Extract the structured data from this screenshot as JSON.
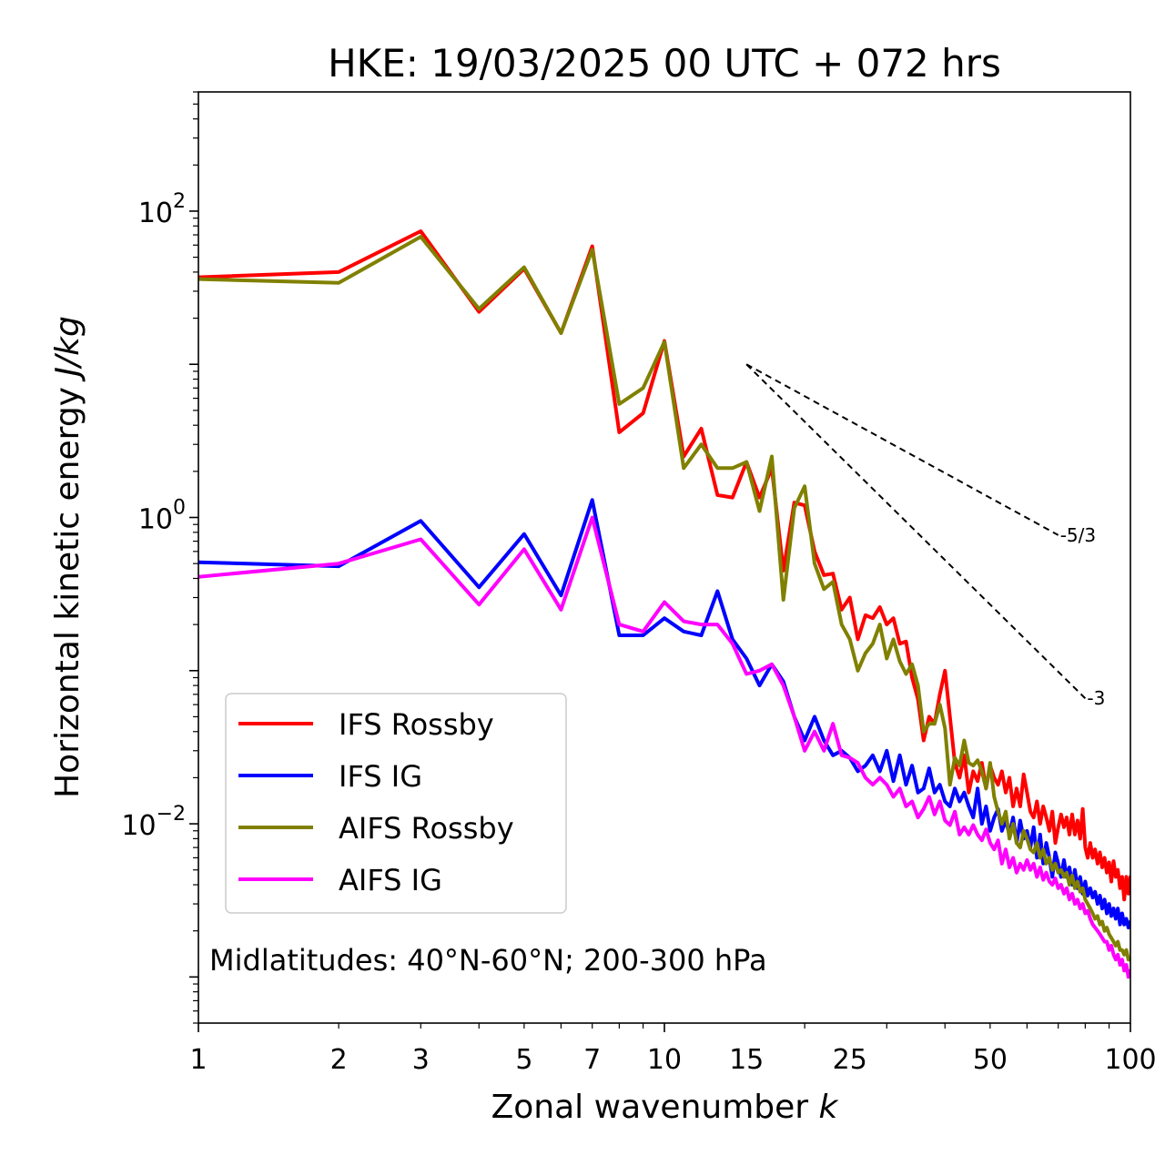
{
  "chart_data": {
    "type": "line",
    "title": "HKE: 19/03/2025 00 UTC + 072 hrs",
    "xlabel": "Zonal wavenumber",
    "xlabel_var": "k",
    "ylabel": "Horizontal kinetic energy",
    "ylabel_unit": "J/kg",
    "xscale": "log",
    "yscale": "log",
    "xlim": [
      1,
      100
    ],
    "ylim": [
      0.0005,
      600
    ],
    "x_ticks": [
      1,
      2,
      3,
      5,
      7,
      10,
      15,
      25,
      50,
      100
    ],
    "x_tick_labels": [
      "1",
      "2",
      "3",
      "5",
      "7",
      "10",
      "15",
      "25",
      "50",
      "100"
    ],
    "y_ticks": [
      {
        "value": 100,
        "base": "10",
        "exp": "2"
      },
      {
        "value": 1,
        "base": "10",
        "exp": "0"
      },
      {
        "value": 0.01,
        "base": "10",
        "exp": "−2"
      }
    ],
    "grid": false,
    "legend_position": "lower-left",
    "annotation": "Midlatitudes: 40°N-60°N; 200-300 hPa",
    "x": [
      1,
      2,
      3,
      4,
      5,
      6,
      7,
      8,
      9,
      10,
      11,
      12,
      13,
      14,
      15,
      16,
      17,
      18,
      19,
      20,
      21,
      22,
      23,
      24,
      25,
      26,
      27,
      28,
      29,
      30,
      31,
      32,
      33,
      34,
      35,
      36,
      37,
      38,
      39,
      40,
      41,
      42,
      43,
      44,
      45,
      46,
      47,
      48,
      49,
      50,
      51,
      52,
      53,
      54,
      55,
      56,
      57,
      58,
      59,
      60,
      61,
      62,
      63,
      64,
      65,
      66,
      67,
      68,
      69,
      70,
      71,
      72,
      73,
      74,
      75,
      76,
      77,
      78,
      79,
      80,
      81,
      82,
      83,
      84,
      85,
      86,
      87,
      88,
      89,
      90,
      91,
      92,
      93,
      94,
      95,
      96,
      97,
      98,
      99,
      100
    ],
    "series": [
      {
        "name": "IFS Rossby",
        "color": "#ff0000",
        "values": [
          37,
          40,
          74,
          22,
          42,
          16,
          59,
          3.6,
          4.8,
          14.2,
          2.5,
          3.8,
          1.4,
          1.35,
          2.3,
          1.35,
          2.1,
          0.45,
          1.25,
          1.2,
          0.6,
          0.42,
          0.43,
          0.25,
          0.3,
          0.16,
          0.23,
          0.22,
          0.26,
          0.2,
          0.22,
          0.15,
          0.155,
          0.09,
          0.065,
          0.035,
          0.05,
          0.045,
          0.07,
          0.1,
          0.05,
          0.025,
          0.02,
          0.028,
          0.016,
          0.022,
          0.019,
          0.025,
          0.017,
          0.024,
          0.02,
          0.018,
          0.022,
          0.016,
          0.02,
          0.013,
          0.017,
          0.013,
          0.021,
          0.016,
          0.012,
          0.011,
          0.014,
          0.01,
          0.013,
          0.011,
          0.009,
          0.012,
          0.0075,
          0.0095,
          0.0115,
          0.0095,
          0.011,
          0.0085,
          0.0115,
          0.0085,
          0.0105,
          0.008,
          0.0125,
          0.007,
          0.006,
          0.0075,
          0.006,
          0.0068,
          0.0055,
          0.0065,
          0.0052,
          0.006,
          0.0048,
          0.0056,
          0.0042,
          0.0057,
          0.0045,
          0.005,
          0.0038,
          0.0045,
          0.0032,
          0.0045,
          0.0035,
          0.0045
        ]
      },
      {
        "name": "IFS IG",
        "color": "#0000ff",
        "values": [
          0.51,
          0.48,
          0.95,
          0.35,
          0.78,
          0.31,
          1.3,
          0.17,
          0.17,
          0.22,
          0.18,
          0.17,
          0.33,
          0.16,
          0.12,
          0.08,
          0.11,
          0.085,
          0.05,
          0.035,
          0.05,
          0.035,
          0.028,
          0.03,
          0.027,
          0.022,
          0.024,
          0.028,
          0.022,
          0.03,
          0.019,
          0.028,
          0.018,
          0.024,
          0.016,
          0.017,
          0.023,
          0.016,
          0.018,
          0.014,
          0.013,
          0.017,
          0.014,
          0.016,
          0.013,
          0.011,
          0.017,
          0.01,
          0.013,
          0.009,
          0.011,
          0.0125,
          0.009,
          0.0105,
          0.0085,
          0.011,
          0.0075,
          0.0105,
          0.008,
          0.009,
          0.007,
          0.0095,
          0.006,
          0.0085,
          0.0055,
          0.0075,
          0.006,
          0.0045,
          0.0065,
          0.0055,
          0.0045,
          0.0058,
          0.0045,
          0.0052,
          0.004,
          0.005,
          0.0038,
          0.0045,
          0.0035,
          0.0042,
          0.0034,
          0.0038,
          0.0033,
          0.0036,
          0.003,
          0.0034,
          0.0028,
          0.0032,
          0.0026,
          0.003,
          0.0025,
          0.0028,
          0.0024,
          0.0028,
          0.0022,
          0.0026,
          0.0022,
          0.0024,
          0.0021,
          0.0023
        ]
      },
      {
        "name": "AIFS Rossby",
        "color": "#808000",
        "values": [
          36,
          34,
          68,
          23,
          43,
          16,
          56,
          5.5,
          7,
          14,
          2.1,
          3,
          2.1,
          2.1,
          2.3,
          1.1,
          2.5,
          0.29,
          1.15,
          1.6,
          0.5,
          0.34,
          0.38,
          0.2,
          0.16,
          0.1,
          0.13,
          0.15,
          0.2,
          0.12,
          0.16,
          0.115,
          0.095,
          0.11,
          0.08,
          0.04,
          0.045,
          0.045,
          0.06,
          0.042,
          0.018,
          0.027,
          0.024,
          0.035,
          0.025,
          0.024,
          0.026,
          0.022,
          0.017,
          0.025,
          0.015,
          0.012,
          0.01,
          0.012,
          0.008,
          0.01,
          0.0075,
          0.007,
          0.009,
          0.008,
          0.0068,
          0.0065,
          0.0075,
          0.006,
          0.0068,
          0.0055,
          0.006,
          0.005,
          0.0055,
          0.0048,
          0.005,
          0.0045,
          0.0048,
          0.004,
          0.0046,
          0.0038,
          0.0042,
          0.0036,
          0.0038,
          0.0032,
          0.003,
          0.0028,
          0.0026,
          0.0024,
          0.0025,
          0.0022,
          0.0023,
          0.002,
          0.0021,
          0.0019,
          0.0018,
          0.0017,
          0.0016,
          0.0017,
          0.0015,
          0.0015,
          0.0014,
          0.0015,
          0.0013,
          0.0013
        ]
      },
      {
        "name": "AIFS IG",
        "color": "#ff00ff",
        "values": [
          0.41,
          0.5,
          0.72,
          0.27,
          0.62,
          0.25,
          1.0,
          0.2,
          0.18,
          0.28,
          0.21,
          0.2,
          0.2,
          0.15,
          0.095,
          0.1,
          0.11,
          0.08,
          0.05,
          0.03,
          0.04,
          0.03,
          0.045,
          0.028,
          0.027,
          0.025,
          0.02,
          0.018,
          0.02,
          0.018,
          0.015,
          0.017,
          0.013,
          0.014,
          0.011,
          0.0125,
          0.015,
          0.0115,
          0.014,
          0.0105,
          0.0098,
          0.012,
          0.0085,
          0.0095,
          0.0085,
          0.0098,
          0.0085,
          0.0078,
          0.0092,
          0.0075,
          0.0068,
          0.0078,
          0.0055,
          0.0068,
          0.0052,
          0.006,
          0.0048,
          0.0055,
          0.005,
          0.0058,
          0.005,
          0.0055,
          0.0045,
          0.0052,
          0.0043,
          0.0048,
          0.0042,
          0.004,
          0.0044,
          0.0038,
          0.004,
          0.0035,
          0.0038,
          0.0032,
          0.0035,
          0.003,
          0.0032,
          0.0028,
          0.003,
          0.0026,
          0.0027,
          0.0024,
          0.0022,
          0.0021,
          0.002,
          0.0019,
          0.0018,
          0.0017,
          0.0017,
          0.0015,
          0.0016,
          0.0014,
          0.0013,
          0.0014,
          0.0012,
          0.0013,
          0.0011,
          0.0012,
          0.001,
          0.0011
        ]
      }
    ],
    "reference_lines": [
      {
        "label": "-5/3",
        "slope": -1.6667,
        "x": [
          15,
          70
        ],
        "y0": 10
      },
      {
        "label": "-3",
        "slope": -3,
        "x": [
          15,
          80
        ],
        "y0": 10
      }
    ]
  }
}
